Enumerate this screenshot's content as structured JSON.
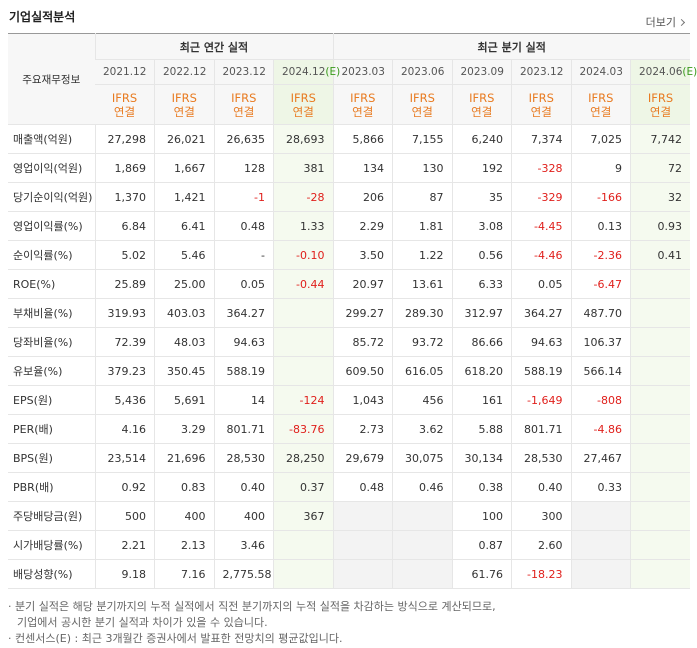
{
  "header": {
    "title": "기업실적분석",
    "more": "더보기"
  },
  "table": {
    "corner": "주요재무정보",
    "groups": [
      {
        "label": "최근 연간 실적",
        "span": 4
      },
      {
        "label": "최근 분기 실적",
        "span": 6
      }
    ],
    "periods": [
      "2021.12",
      "2022.12",
      "2023.12",
      "2024.12(E)",
      "2023.03",
      "2023.06",
      "2023.09",
      "2023.12",
      "2024.03",
      "2024.06(E)"
    ],
    "standards": [
      [
        "IFRS",
        "연결"
      ],
      [
        "IFRS",
        "연결"
      ],
      [
        "IFRS",
        "연결"
      ],
      [
        "IFRS",
        "연결"
      ],
      [
        "IFRS",
        "연결"
      ],
      [
        "IFRS",
        "연결"
      ],
      [
        "IFRS",
        "연결"
      ],
      [
        "IFRS",
        "연결"
      ],
      [
        "IFRS",
        "연결"
      ],
      [
        "IFRS",
        "연결"
      ]
    ],
    "rows": [
      {
        "label": "매출액(억원)",
        "values": [
          "27,298",
          "26,021",
          "26,635",
          "28,693",
          "5,866",
          "7,155",
          "6,240",
          "7,374",
          "7,025",
          "7,742"
        ]
      },
      {
        "label": "영업이익(억원)",
        "values": [
          "1,869",
          "1,667",
          "128",
          "381",
          "134",
          "130",
          "192",
          "-328",
          "9",
          "72"
        ]
      },
      {
        "label": "당기순이익(억원)",
        "values": [
          "1,370",
          "1,421",
          "-1",
          "-28",
          "206",
          "87",
          "35",
          "-329",
          "-166",
          "32"
        ]
      },
      {
        "label": "영업이익률(%)",
        "values": [
          "6.84",
          "6.41",
          "0.48",
          "1.33",
          "2.29",
          "1.81",
          "3.08",
          "-4.45",
          "0.13",
          "0.93"
        ]
      },
      {
        "label": "순이익률(%)",
        "values": [
          "5.02",
          "5.46",
          "-",
          "-0.10",
          "3.50",
          "1.22",
          "0.56",
          "-4.46",
          "-2.36",
          "0.41"
        ]
      },
      {
        "label": "ROE(%)",
        "values": [
          "25.89",
          "25.00",
          "0.05",
          "-0.44",
          "20.97",
          "13.61",
          "6.33",
          "0.05",
          "-6.47",
          null
        ]
      },
      {
        "label": "부채비율(%)",
        "values": [
          "319.93",
          "403.03",
          "364.27",
          null,
          "299.27",
          "289.30",
          "312.97",
          "364.27",
          "487.70",
          null
        ]
      },
      {
        "label": "당좌비율(%)",
        "values": [
          "72.39",
          "48.03",
          "94.63",
          null,
          "85.72",
          "93.72",
          "86.66",
          "94.63",
          "106.37",
          null
        ]
      },
      {
        "label": "유보율(%)",
        "values": [
          "379.23",
          "350.45",
          "588.19",
          null,
          "609.50",
          "616.05",
          "618.20",
          "588.19",
          "566.14",
          null
        ]
      },
      {
        "label": "EPS(원)",
        "values": [
          "5,436",
          "5,691",
          "14",
          "-124",
          "1,043",
          "456",
          "161",
          "-1,649",
          "-808",
          null
        ]
      },
      {
        "label": "PER(배)",
        "values": [
          "4.16",
          "3.29",
          "801.71",
          "-83.76",
          "2.73",
          "3.62",
          "5.88",
          "801.71",
          "-4.86",
          null
        ]
      },
      {
        "label": "BPS(원)",
        "values": [
          "23,514",
          "21,696",
          "28,530",
          "28,250",
          "29,679",
          "30,075",
          "30,134",
          "28,530",
          "27,467",
          null
        ]
      },
      {
        "label": "PBR(배)",
        "values": [
          "0.92",
          "0.83",
          "0.40",
          "0.37",
          "0.48",
          "0.46",
          "0.38",
          "0.40",
          "0.33",
          null
        ]
      },
      {
        "label": "주당배당금(원)",
        "values": [
          "500",
          "400",
          "400",
          "367",
          null,
          null,
          "100",
          "300",
          null,
          null
        ]
      },
      {
        "label": "시가배당률(%)",
        "values": [
          "2.21",
          "2.13",
          "3.46",
          null,
          null,
          null,
          "0.87",
          "2.60",
          null,
          null
        ]
      },
      {
        "label": "배당성향(%)",
        "values": [
          "9.18",
          "7.16",
          "2,775.58",
          null,
          null,
          null,
          "61.76",
          "-18.23",
          null,
          null
        ]
      }
    ]
  },
  "notes": [
    "· 분기 실적은 해당 분기까지의 누적 실적에서 직전 분기까지의 누적 실적을 차감하는 방식으로 계산되므로,",
    "기업에서 공시한 분기 실적과 차이가 있을 수 있습니다.",
    "· 컨센서스(E) : 최근 3개월간 증권사에서 발표한 전망치의 평균값입니다."
  ]
}
